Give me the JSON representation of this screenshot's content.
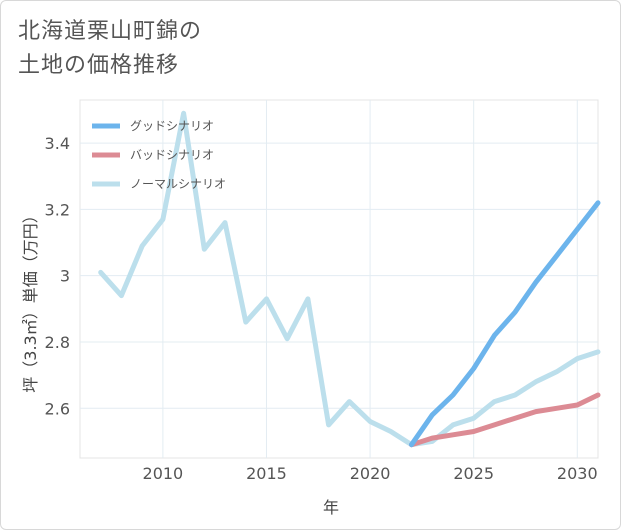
{
  "title_line1": "北海道栗山町錦の",
  "title_line2": "土地の価格推移",
  "chart_data": {
    "type": "line",
    "title": "北海道栗山町錦の土地の価格推移",
    "xlabel": "年",
    "ylabel": "坪（3.3㎡）単価（万円）",
    "xlim": [
      2006,
      2031
    ],
    "ylim": [
      2.45,
      3.53
    ],
    "xticks": [
      2010,
      2015,
      2020,
      2025,
      2030
    ],
    "xtick_labels": [
      "2010",
      "2015",
      "2020",
      "2025",
      "2030"
    ],
    "yticks": [
      2.6,
      2.8,
      3.0,
      3.2,
      3.4
    ],
    "ytick_labels": [
      "2.6",
      "2.8",
      "3",
      "3.2",
      "3.4"
    ],
    "legend_position": "top-left",
    "grid": true,
    "series": [
      {
        "name": "グッドシナリオ",
        "color": "#6cb4ec",
        "x": [
          2022,
          2023,
          2024,
          2025,
          2026,
          2027,
          2028,
          2029,
          2030,
          2031
        ],
        "values": [
          2.49,
          2.58,
          2.64,
          2.72,
          2.82,
          2.89,
          2.98,
          3.06,
          3.14,
          3.22
        ]
      },
      {
        "name": "バッドシナリオ",
        "color": "#dc8b94",
        "x": [
          2022,
          2023,
          2024,
          2025,
          2026,
          2027,
          2028,
          2029,
          2030,
          2031
        ],
        "values": [
          2.49,
          2.51,
          2.52,
          2.53,
          2.55,
          2.57,
          2.59,
          2.6,
          2.61,
          2.64
        ]
      },
      {
        "name": "ノーマルシナリオ",
        "color": "#bcdfec",
        "x": [
          2007,
          2008,
          2009,
          2010,
          2011,
          2012,
          2013,
          2014,
          2015,
          2016,
          2017,
          2018,
          2019,
          2020,
          2021,
          2022,
          2023,
          2024,
          2025,
          2026,
          2027,
          2028,
          2029,
          2030,
          2031
        ],
        "values": [
          3.01,
          2.94,
          3.09,
          3.17,
          3.49,
          3.08,
          3.16,
          2.86,
          2.93,
          2.81,
          2.93,
          2.55,
          2.62,
          2.56,
          2.53,
          2.49,
          2.5,
          2.55,
          2.57,
          2.62,
          2.64,
          2.68,
          2.71,
          2.75,
          2.77
        ]
      }
    ]
  }
}
